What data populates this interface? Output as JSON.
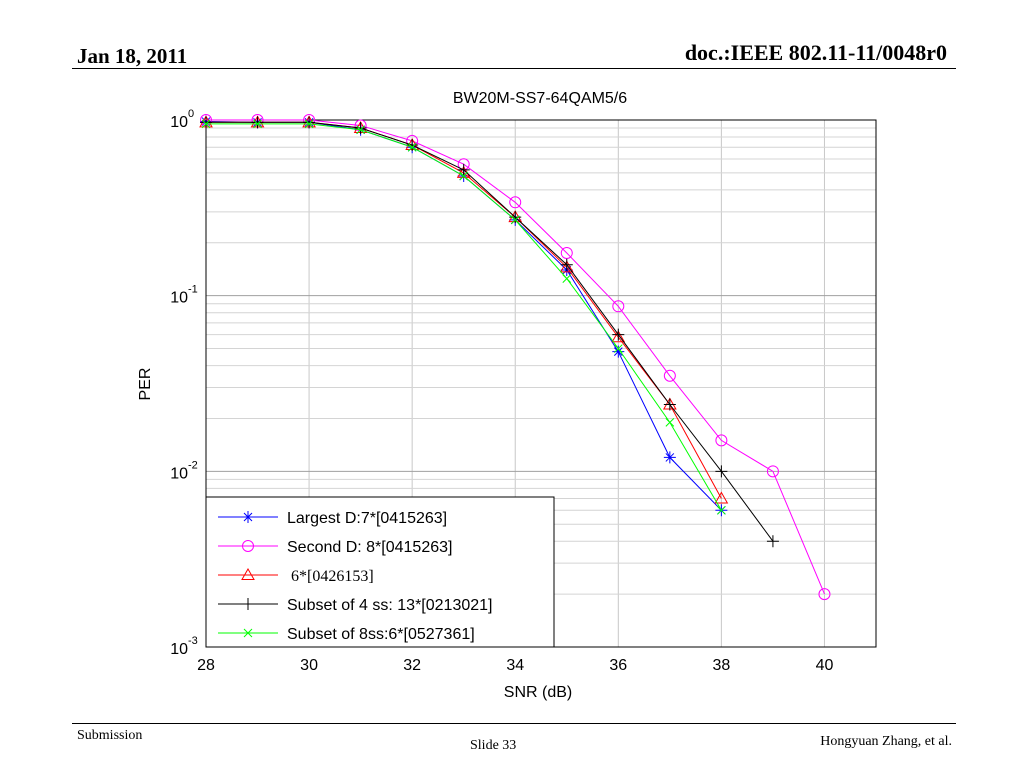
{
  "slide": {
    "date": "Jan 18, 2011",
    "doc_id": "doc.:IEEE 802.11-11/0048r0",
    "submission": "Submission",
    "slide_number": "Slide 33",
    "author": "Hongyuan Zhang, et al."
  },
  "chart_data": {
    "type": "line",
    "title": "BW20M-SS7-64QAM5/6",
    "xlabel": "SNR (dB)",
    "ylabel": "PER",
    "xlim": [
      28,
      41
    ],
    "ylim": [
      0.001,
      1
    ],
    "yscale": "log",
    "xticks": [
      "28",
      "30",
      "32",
      "34",
      "36",
      "38",
      "40"
    ],
    "ytick_base": "10",
    "ytick_exponents": [
      "0",
      "-1",
      "-2",
      "-3"
    ],
    "grid": true,
    "legend_position": "bottom-left",
    "series": [
      {
        "name": "Largest D:7*[0415263]",
        "color": "#0000ff",
        "marker": "star",
        "x": [
          28,
          29,
          30,
          31,
          32,
          33,
          34,
          35,
          36,
          37,
          38
        ],
        "y": [
          0.98,
          0.97,
          0.97,
          0.88,
          0.7,
          0.48,
          0.27,
          0.14,
          0.048,
          0.012,
          0.006
        ]
      },
      {
        "name": "Second D: 8*[0415263]",
        "color": "#ff00ff",
        "marker": "circle",
        "x": [
          28,
          29,
          30,
          31,
          32,
          33,
          34,
          35,
          36,
          37,
          38,
          39,
          40
        ],
        "y": [
          1.0,
          1.0,
          1.0,
          0.93,
          0.76,
          0.56,
          0.34,
          0.175,
          0.087,
          0.035,
          0.015,
          0.01,
          0.002
        ]
      },
      {
        "name": "6*[0426153]",
        "color": "#ff0000",
        "marker": "triangle",
        "x": [
          28,
          29,
          30,
          31,
          32,
          33,
          34,
          35,
          36,
          37,
          38
        ],
        "y": [
          0.97,
          0.97,
          0.97,
          0.9,
          0.72,
          0.5,
          0.28,
          0.145,
          0.058,
          0.024,
          0.007
        ]
      },
      {
        "name": "Subset of 4 ss: 13*[0213021]",
        "color": "#000000",
        "marker": "plus",
        "x": [
          28,
          29,
          30,
          31,
          32,
          33,
          34,
          35,
          36,
          37,
          38,
          39
        ],
        "y": [
          0.97,
          0.97,
          0.97,
          0.9,
          0.72,
          0.52,
          0.28,
          0.15,
          0.06,
          0.024,
          0.01,
          0.004
        ]
      },
      {
        "name": "Subset of 8ss:6*[0527361]",
        "color": "#00ff00",
        "marker": "x",
        "x": [
          28,
          29,
          30,
          31,
          32,
          33,
          34,
          35,
          36,
          37,
          38
        ],
        "y": [
          0.95,
          0.95,
          0.95,
          0.88,
          0.7,
          0.48,
          0.27,
          0.125,
          0.05,
          0.019,
          0.006
        ]
      }
    ]
  }
}
